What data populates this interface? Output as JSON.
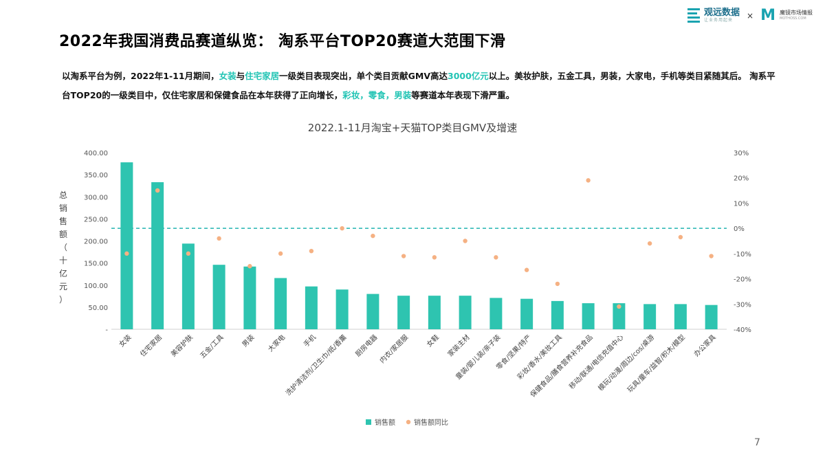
{
  "header": {
    "brand_name": "观远数据",
    "brand_sub": "让业务用起来",
    "times": "×",
    "partner_name": "魔镜市场情报",
    "partner_sub": "MOTHOSS.COM"
  },
  "title": "2022年我国消费品赛道纵览： 淘系平台TOP20赛道大范围下滑",
  "description": {
    "p1": "以淘系平台为例，2022年1-11月期间，",
    "h1": "女装",
    "p2": "与",
    "h2": "住宅家居",
    "p3": "一级类目表现突出，单个类目贡献GMV高达",
    "h3": "3000亿元",
    "p4": "以上。美妆护肤，五金工具，男装，大家电，手机等类目紧随其后。 淘系平台TOP20的一级类目中，仅住宅家居和保健食品在本年获得了正向增长，",
    "h4": "彩妆，零食，男装",
    "p5": "等赛道本年表现下滑严重。"
  },
  "page_number": "7",
  "colors": {
    "bar": "#2ec4b0",
    "dot": "#f5b183",
    "dashed": "#21b3b0"
  },
  "chart_data": {
    "type": "bar",
    "title": "2022.1-11月淘宝+天猫TOP类目GMV及增速",
    "ylabel": "总销售额（十亿元）",
    "categories": [
      "女装",
      "住宅家居",
      "美容护肤",
      "五金/工具",
      "男装",
      "大家电",
      "手机",
      "洗护清洁剂/卫生巾/纸/香薰",
      "厨房电器",
      "内衣/家居服",
      "女鞋",
      "家装主材",
      "童装/婴儿装/亲子装",
      "零食/坚果/特产",
      "彩妆/香水/美妆工具",
      "保健食品/膳食营养补充食品",
      "移动/联通/电信充值中心",
      "模玩/动漫/周边/cos/桌游",
      "玩具/童车/益智/积木/模型",
      "办公家具"
    ],
    "series": [
      {
        "name": "销售额",
        "type": "bar",
        "values": [
          378,
          333,
          194,
          146,
          142,
          116,
          97,
          90,
          80,
          76,
          76,
          76,
          71,
          69,
          64,
          59,
          59,
          57,
          57,
          55
        ]
      },
      {
        "name": "销售额同比",
        "type": "scatter",
        "values": [
          -10,
          15,
          -10,
          -4,
          -15,
          -10,
          -9,
          0,
          -3,
          -11,
          -11.5,
          -5,
          -11.5,
          -16.5,
          -22,
          19,
          -31,
          -6,
          -3.5,
          -11
        ]
      }
    ],
    "ylim": [
      0,
      400
    ],
    "y2lim": [
      -40,
      30
    ],
    "y_ticks": [
      "-",
      "50.00",
      "100.00",
      "150.00",
      "200.00",
      "250.00",
      "300.00",
      "350.00",
      "400.00"
    ],
    "y2_ticks": [
      "-40%",
      "-30%",
      "-20%",
      "-10%",
      "0%",
      "10%",
      "20%",
      "30%"
    ],
    "legend": "bottom"
  }
}
